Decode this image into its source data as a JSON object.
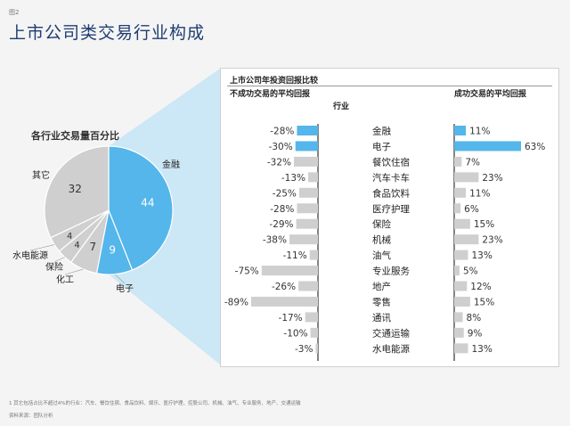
{
  "figure_tag": "图2",
  "page_title": "上市公司类交易行业构成",
  "colors": {
    "highlight": "#54b6ea",
    "gray_slice": "#cfcfcf",
    "gray_bar": "#cfcfcf",
    "title_blue": "#1f3d73",
    "zoom_fill": "#bfe3f6"
  },
  "chart_data": [
    {
      "type": "pie",
      "title": "各行业交易量百分比",
      "unit": "%",
      "slices": [
        {
          "label": "金融",
          "value": 44,
          "highlight": true
        },
        {
          "label": "电子",
          "value": 9,
          "highlight": true
        },
        {
          "label": "化工",
          "value": 7,
          "highlight": false
        },
        {
          "label": "保险",
          "value": 4,
          "highlight": false
        },
        {
          "label": "水电能源",
          "value": 4,
          "highlight": false
        },
        {
          "label": "其它",
          "value": 32,
          "highlight": false
        }
      ]
    },
    {
      "type": "bar",
      "title": "上市公司年投资回报比较",
      "left_header": "不成功交易的平均回报",
      "center_header": "行业",
      "right_header": "成功交易的平均回报",
      "categories": [
        "金融",
        "电子",
        "餐饮住宿",
        "汽车卡车",
        "食品饮料",
        "医疗护理",
        "保险",
        "机械",
        "油气",
        "专业服务",
        "地产",
        "零售",
        "通讯",
        "交通运输",
        "水电能源"
      ],
      "highlighted": [
        "金融",
        "电子"
      ],
      "series": [
        {
          "name": "不成功交易的平均回报",
          "unit": "%",
          "values": [
            -28,
            -30,
            -32,
            -13,
            -25,
            -28,
            -29,
            -38,
            -11,
            -75,
            -26,
            -89,
            -17,
            -10,
            -3
          ]
        },
        {
          "name": "成功交易的平均回报",
          "unit": "%",
          "values": [
            11,
            63,
            7,
            23,
            11,
            6,
            15,
            23,
            13,
            5,
            12,
            15,
            8,
            9,
            13
          ]
        }
      ]
    }
  ],
  "footnote": "1 其它包括占比不超过4%的行业：汽车、餐饮住宿、食品饮料、娱乐、医疗护理、控股公司、机械、油气、专业服务、地产、交通运输",
  "source": "资料来源：团队分析"
}
